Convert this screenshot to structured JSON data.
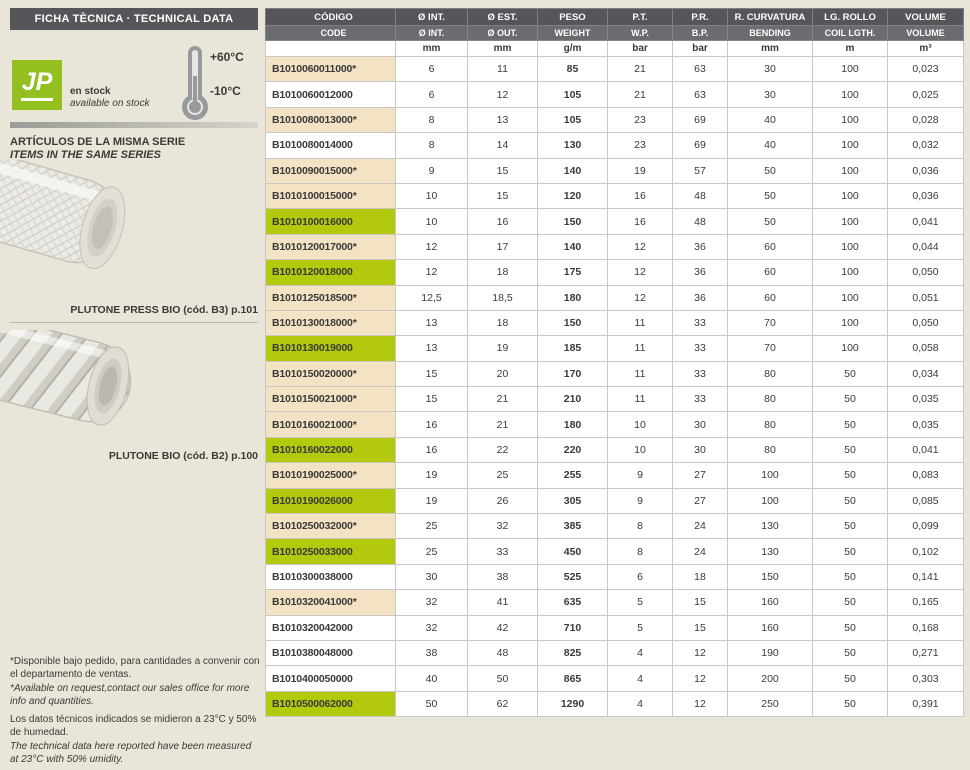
{
  "colors": {
    "page_bg": "#e9e5d8",
    "header_dark": "#55565a",
    "header_mid": "#6b6c70",
    "row_green": "#b2c90d",
    "row_beige": "#f3e2c3",
    "logo_green": "#93c01f"
  },
  "sidebar": {
    "title": "FICHA TÈCNICA · TECHNICAL DATA",
    "logo_text": "JP",
    "stock_es": "en stock",
    "stock_en": "available on stock",
    "temp_high": "+60°C",
    "temp_low": "-10°C",
    "series_heading_es": "ARTÍCULOS DE LA MISMA SERIE",
    "series_heading_en": "ITEMS IN THE SAME SERIES",
    "product1_caption": "PLUTONE PRESS BIO (cód. B3) p.101",
    "product2_caption": "PLUTONE BIO (cód. B2) p.100",
    "footnotes": [
      "*Disponible bajo pedido, para cantidades a convenir con el departamento de ventas.",
      "*Available on request,contact our sales office for more info and quantities.",
      "Los datos técnicos indicados se midieron a 23°C y 50% de humedad.",
      "The technical data here reported have been measured at 23°C with 50% umidity."
    ]
  },
  "table": {
    "columns": [
      {
        "h1": "CÓDIGO",
        "h2": "CODE",
        "unit": ""
      },
      {
        "h1": "Ø INT.",
        "h2": "Ø INT.",
        "unit": "mm"
      },
      {
        "h1": "Ø EST.",
        "h2": "Ø OUT.",
        "unit": "mm"
      },
      {
        "h1": "PESO",
        "h2": "WEIGHT",
        "unit": "g/m"
      },
      {
        "h1": "P.T.",
        "h2": "W.P.",
        "unit": "bar"
      },
      {
        "h1": "P.R.",
        "h2": "B.P.",
        "unit": "bar"
      },
      {
        "h1": "R. CURVATURA",
        "h2": "BENDING",
        "unit": "mm"
      },
      {
        "h1": "LG. ROLLO",
        "h2": "COIL LGTH.",
        "unit": "m"
      },
      {
        "h1": "VOLUME",
        "h2": "VOLUME",
        "unit": "m³"
      }
    ],
    "rows": [
      {
        "code": "B1010060011000*",
        "highlight": "beige",
        "values": [
          "6",
          "11",
          "85",
          "21",
          "63",
          "30",
          "100",
          "0,023"
        ]
      },
      {
        "code": "B1010060012000",
        "highlight": "white",
        "values": [
          "6",
          "12",
          "105",
          "21",
          "63",
          "30",
          "100",
          "0,025"
        ]
      },
      {
        "code": "B1010080013000*",
        "highlight": "beige",
        "values": [
          "8",
          "13",
          "105",
          "23",
          "69",
          "40",
          "100",
          "0,028"
        ]
      },
      {
        "code": "B1010080014000",
        "highlight": "white",
        "values": [
          "8",
          "14",
          "130",
          "23",
          "69",
          "40",
          "100",
          "0,032"
        ]
      },
      {
        "code": "B1010090015000*",
        "highlight": "beige",
        "values": [
          "9",
          "15",
          "140",
          "19",
          "57",
          "50",
          "100",
          "0,036"
        ]
      },
      {
        "code": "B1010100015000*",
        "highlight": "beige",
        "values": [
          "10",
          "15",
          "120",
          "16",
          "48",
          "50",
          "100",
          "0,036"
        ]
      },
      {
        "code": "B1010100016000",
        "highlight": "green",
        "values": [
          "10",
          "16",
          "150",
          "16",
          "48",
          "50",
          "100",
          "0,041"
        ]
      },
      {
        "code": "B1010120017000*",
        "highlight": "beige",
        "values": [
          "12",
          "17",
          "140",
          "12",
          "36",
          "60",
          "100",
          "0,044"
        ]
      },
      {
        "code": "B1010120018000",
        "highlight": "green",
        "values": [
          "12",
          "18",
          "175",
          "12",
          "36",
          "60",
          "100",
          "0,050"
        ]
      },
      {
        "code": "B1010125018500*",
        "highlight": "beige",
        "values": [
          "12,5",
          "18,5",
          "180",
          "12",
          "36",
          "60",
          "100",
          "0,051"
        ]
      },
      {
        "code": "B1010130018000*",
        "highlight": "beige",
        "values": [
          "13",
          "18",
          "150",
          "11",
          "33",
          "70",
          "100",
          "0,050"
        ]
      },
      {
        "code": "B1010130019000",
        "highlight": "green",
        "values": [
          "13",
          "19",
          "185",
          "11",
          "33",
          "70",
          "100",
          "0,058"
        ]
      },
      {
        "code": "B1010150020000*",
        "highlight": "beige",
        "values": [
          "15",
          "20",
          "170",
          "11",
          "33",
          "80",
          "50",
          "0,034"
        ]
      },
      {
        "code": "B1010150021000*",
        "highlight": "beige",
        "values": [
          "15",
          "21",
          "210",
          "11",
          "33",
          "80",
          "50",
          "0,035"
        ]
      },
      {
        "code": "B1010160021000*",
        "highlight": "beige",
        "values": [
          "16",
          "21",
          "180",
          "10",
          "30",
          "80",
          "50",
          "0,035"
        ]
      },
      {
        "code": "B1010160022000",
        "highlight": "green",
        "values": [
          "16",
          "22",
          "220",
          "10",
          "30",
          "80",
          "50",
          "0,041"
        ]
      },
      {
        "code": "B1010190025000*",
        "highlight": "beige",
        "values": [
          "19",
          "25",
          "255",
          "9",
          "27",
          "100",
          "50",
          "0,083"
        ]
      },
      {
        "code": "B1010190026000",
        "highlight": "green",
        "values": [
          "19",
          "26",
          "305",
          "9",
          "27",
          "100",
          "50",
          "0,085"
        ]
      },
      {
        "code": "B1010250032000*",
        "highlight": "beige",
        "values": [
          "25",
          "32",
          "385",
          "8",
          "24",
          "130",
          "50",
          "0,099"
        ]
      },
      {
        "code": "B1010250033000",
        "highlight": "green",
        "values": [
          "25",
          "33",
          "450",
          "8",
          "24",
          "130",
          "50",
          "0,102"
        ]
      },
      {
        "code": "B1010300038000",
        "highlight": "white",
        "values": [
          "30",
          "38",
          "525",
          "6",
          "18",
          "150",
          "50",
          "0,141"
        ]
      },
      {
        "code": "B1010320041000*",
        "highlight": "beige",
        "values": [
          "32",
          "41",
          "635",
          "5",
          "15",
          "160",
          "50",
          "0,165"
        ]
      },
      {
        "code": "B1010320042000",
        "highlight": "white",
        "values": [
          "32",
          "42",
          "710",
          "5",
          "15",
          "160",
          "50",
          "0,168"
        ]
      },
      {
        "code": "B1010380048000",
        "highlight": "white",
        "values": [
          "38",
          "48",
          "825",
          "4",
          "12",
          "190",
          "50",
          "0,271"
        ]
      },
      {
        "code": "B1010400050000",
        "highlight": "white",
        "values": [
          "40",
          "50",
          "865",
          "4",
          "12",
          "200",
          "50",
          "0,303"
        ]
      },
      {
        "code": "B1010500062000",
        "highlight": "green",
        "values": [
          "50",
          "62",
          "1290",
          "4",
          "12",
          "250",
          "50",
          "0,391"
        ]
      }
    ]
  }
}
